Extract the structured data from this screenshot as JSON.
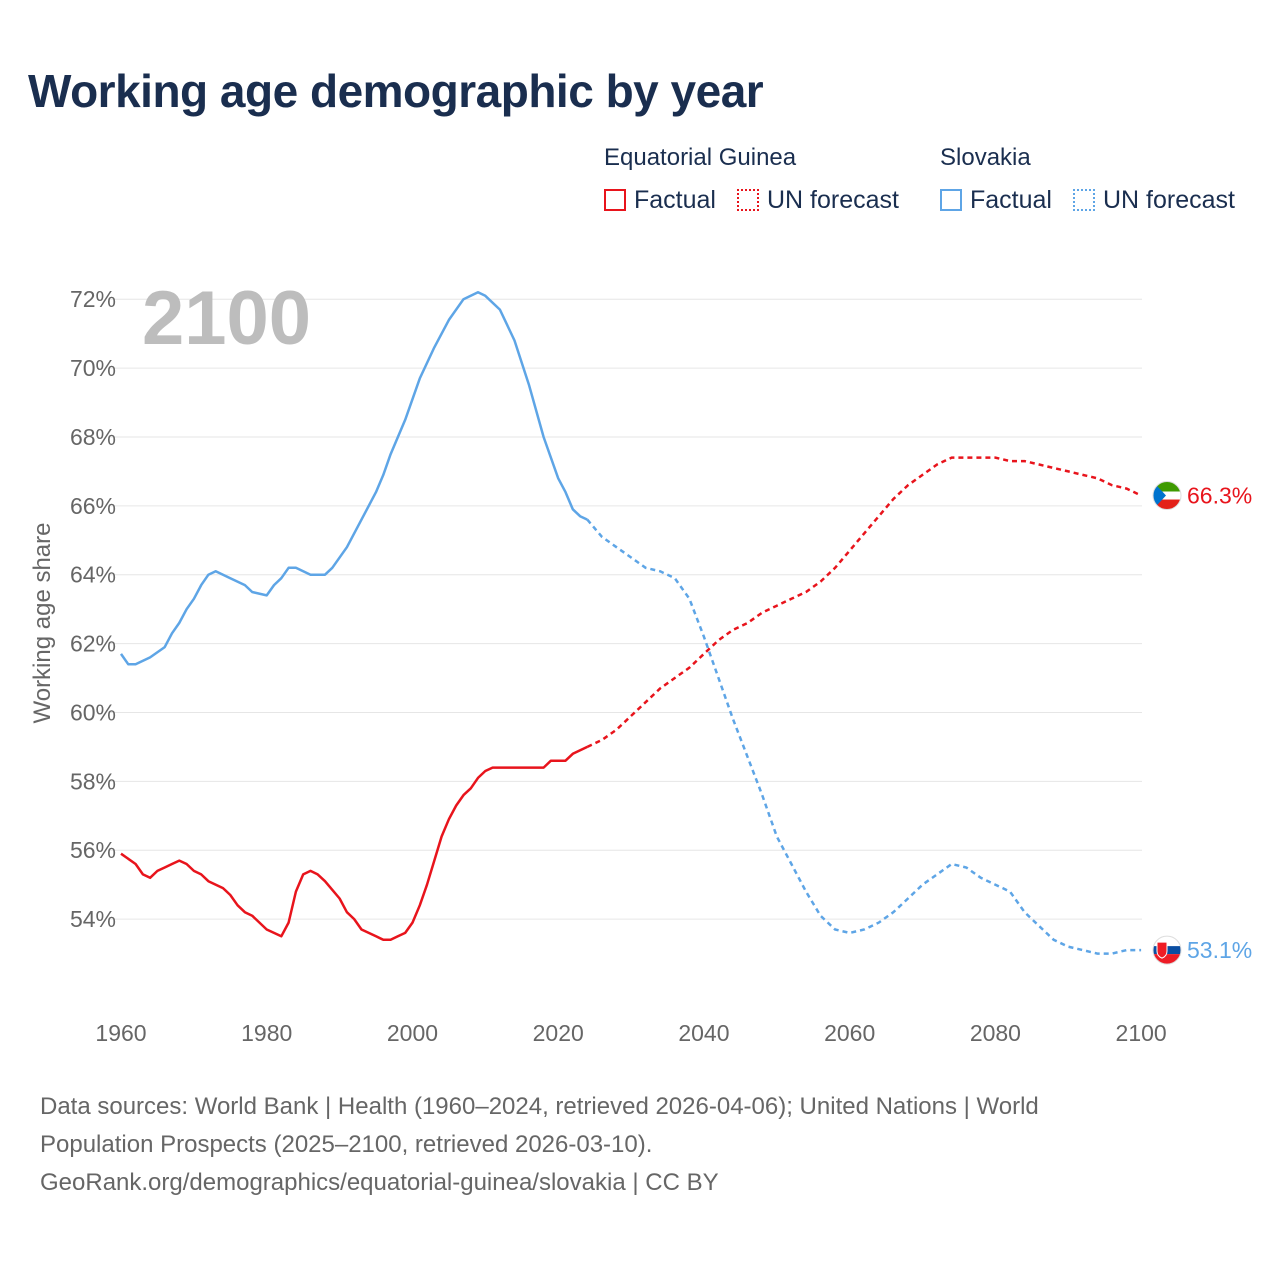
{
  "title": "Working age demographic by year",
  "legend": {
    "groups": [
      {
        "name": "Equatorial Guinea",
        "factual_label": "Factual",
        "forecast_label": "UN forecast",
        "color": "#e8141c"
      },
      {
        "name": "Slovakia",
        "factual_label": "Factual",
        "forecast_label": "UN forecast",
        "color": "#5ea5e6"
      }
    ]
  },
  "footer": {
    "line1": "Data sources: World Bank | Health (1960–2024, retrieved 2026-04-06); United Nations | World",
    "line2": "Population Prospects (2025–2100, retrieved 2026-03-10).",
    "line3": "GeoRank.org/demographics/equatorial-guinea/slovakia | CC BY"
  },
  "chart_data": {
    "type": "line",
    "year_label": "2100",
    "ylabel": "Working age share",
    "xlim": [
      1960,
      2103
    ],
    "ylim": [
      52.0,
      72.5
    ],
    "x_ticks": [
      1960,
      1980,
      2000,
      2020,
      2040,
      2060,
      2080,
      2100
    ],
    "y_ticks": [
      54,
      56,
      58,
      60,
      62,
      64,
      66,
      68,
      70,
      72
    ],
    "y_tick_labels": [
      "54%",
      "56%",
      "58%",
      "60%",
      "62%",
      "64%",
      "66%",
      "68%",
      "70%",
      "72%"
    ],
    "factual_end_year": 2024,
    "series": [
      {
        "name": "Equatorial Guinea",
        "color": "#e8141c",
        "end_label": "66.3%",
        "points": [
          [
            1960,
            55.9
          ],
          [
            1962,
            55.6
          ],
          [
            1963,
            55.3
          ],
          [
            1964,
            55.2
          ],
          [
            1965,
            55.4
          ],
          [
            1966,
            55.5
          ],
          [
            1967,
            55.6
          ],
          [
            1968,
            55.7
          ],
          [
            1969,
            55.6
          ],
          [
            1970,
            55.4
          ],
          [
            1971,
            55.3
          ],
          [
            1972,
            55.1
          ],
          [
            1974,
            54.9
          ],
          [
            1975,
            54.7
          ],
          [
            1976,
            54.4
          ],
          [
            1977,
            54.2
          ],
          [
            1978,
            54.1
          ],
          [
            1980,
            53.7
          ],
          [
            1982,
            53.5
          ],
          [
            1983,
            53.9
          ],
          [
            1984,
            54.8
          ],
          [
            1985,
            55.3
          ],
          [
            1986,
            55.4
          ],
          [
            1987,
            55.3
          ],
          [
            1988,
            55.1
          ],
          [
            1990,
            54.6
          ],
          [
            1991,
            54.2
          ],
          [
            1992,
            54.0
          ],
          [
            1993,
            53.7
          ],
          [
            1995,
            53.5
          ],
          [
            1996,
            53.4
          ],
          [
            1997,
            53.4
          ],
          [
            1998,
            53.5
          ],
          [
            1999,
            53.6
          ],
          [
            2000,
            53.9
          ],
          [
            2001,
            54.4
          ],
          [
            2002,
            55.0
          ],
          [
            2003,
            55.7
          ],
          [
            2004,
            56.4
          ],
          [
            2005,
            56.9
          ],
          [
            2006,
            57.3
          ],
          [
            2007,
            57.6
          ],
          [
            2008,
            57.8
          ],
          [
            2009,
            58.1
          ],
          [
            2010,
            58.3
          ],
          [
            2011,
            58.4
          ],
          [
            2012,
            58.4
          ],
          [
            2014,
            58.4
          ],
          [
            2016,
            58.4
          ],
          [
            2018,
            58.4
          ],
          [
            2019,
            58.6
          ],
          [
            2021,
            58.6
          ],
          [
            2022,
            58.8
          ],
          [
            2024,
            59.0
          ],
          [
            2026,
            59.2
          ],
          [
            2028,
            59.5
          ],
          [
            2030,
            59.9
          ],
          [
            2032,
            60.3
          ],
          [
            2034,
            60.7
          ],
          [
            2036,
            61.0
          ],
          [
            2038,
            61.3
          ],
          [
            2040,
            61.7
          ],
          [
            2042,
            62.1
          ],
          [
            2044,
            62.4
          ],
          [
            2046,
            62.6
          ],
          [
            2048,
            62.9
          ],
          [
            2050,
            63.1
          ],
          [
            2052,
            63.3
          ],
          [
            2054,
            63.5
          ],
          [
            2056,
            63.8
          ],
          [
            2058,
            64.2
          ],
          [
            2060,
            64.7
          ],
          [
            2062,
            65.2
          ],
          [
            2064,
            65.7
          ],
          [
            2066,
            66.2
          ],
          [
            2068,
            66.6
          ],
          [
            2070,
            66.9
          ],
          [
            2072,
            67.2
          ],
          [
            2074,
            67.4
          ],
          [
            2076,
            67.4
          ],
          [
            2078,
            67.4
          ],
          [
            2080,
            67.4
          ],
          [
            2082,
            67.3
          ],
          [
            2084,
            67.3
          ],
          [
            2086,
            67.2
          ],
          [
            2088,
            67.1
          ],
          [
            2090,
            67.0
          ],
          [
            2092,
            66.9
          ],
          [
            2094,
            66.8
          ],
          [
            2096,
            66.6
          ],
          [
            2098,
            66.5
          ],
          [
            2100,
            66.3
          ]
        ]
      },
      {
        "name": "Slovakia",
        "color": "#5ea5e6",
        "end_label": "53.1%",
        "points": [
          [
            1960,
            61.7
          ],
          [
            1961,
            61.4
          ],
          [
            1962,
            61.4
          ],
          [
            1964,
            61.6
          ],
          [
            1966,
            61.9
          ],
          [
            1967,
            62.3
          ],
          [
            1968,
            62.6
          ],
          [
            1969,
            63.0
          ],
          [
            1970,
            63.3
          ],
          [
            1971,
            63.7
          ],
          [
            1972,
            64.0
          ],
          [
            1973,
            64.1
          ],
          [
            1975,
            63.9
          ],
          [
            1977,
            63.7
          ],
          [
            1978,
            63.5
          ],
          [
            1980,
            63.4
          ],
          [
            1981,
            63.7
          ],
          [
            1982,
            63.9
          ],
          [
            1983,
            64.2
          ],
          [
            1984,
            64.2
          ],
          [
            1986,
            64.0
          ],
          [
            1988,
            64.0
          ],
          [
            1989,
            64.2
          ],
          [
            1991,
            64.8
          ],
          [
            1993,
            65.6
          ],
          [
            1995,
            66.4
          ],
          [
            1996,
            66.9
          ],
          [
            1997,
            67.5
          ],
          [
            1999,
            68.5
          ],
          [
            2001,
            69.7
          ],
          [
            2003,
            70.6
          ],
          [
            2005,
            71.4
          ],
          [
            2007,
            72.0
          ],
          [
            2009,
            72.2
          ],
          [
            2010,
            72.1
          ],
          [
            2012,
            71.7
          ],
          [
            2014,
            70.8
          ],
          [
            2016,
            69.5
          ],
          [
            2018,
            68.0
          ],
          [
            2020,
            66.8
          ],
          [
            2021,
            66.4
          ],
          [
            2022,
            65.9
          ],
          [
            2023,
            65.7
          ],
          [
            2024,
            65.6
          ],
          [
            2026,
            65.1
          ],
          [
            2028,
            64.8
          ],
          [
            2030,
            64.5
          ],
          [
            2032,
            64.2
          ],
          [
            2034,
            64.1
          ],
          [
            2036,
            63.9
          ],
          [
            2038,
            63.3
          ],
          [
            2040,
            62.2
          ],
          [
            2042,
            61.0
          ],
          [
            2044,
            59.8
          ],
          [
            2046,
            58.7
          ],
          [
            2048,
            57.6
          ],
          [
            2050,
            56.4
          ],
          [
            2052,
            55.6
          ],
          [
            2054,
            54.8
          ],
          [
            2056,
            54.1
          ],
          [
            2058,
            53.7
          ],
          [
            2060,
            53.6
          ],
          [
            2062,
            53.7
          ],
          [
            2064,
            53.9
          ],
          [
            2066,
            54.2
          ],
          [
            2068,
            54.6
          ],
          [
            2070,
            55.0
          ],
          [
            2072,
            55.3
          ],
          [
            2074,
            55.6
          ],
          [
            2076,
            55.5
          ],
          [
            2078,
            55.2
          ],
          [
            2080,
            55.0
          ],
          [
            2082,
            54.8
          ],
          [
            2084,
            54.2
          ],
          [
            2086,
            53.8
          ],
          [
            2088,
            53.4
          ],
          [
            2090,
            53.2
          ],
          [
            2092,
            53.1
          ],
          [
            2094,
            53.0
          ],
          [
            2096,
            53.0
          ],
          [
            2098,
            53.1
          ],
          [
            2100,
            53.1
          ]
        ]
      }
    ]
  }
}
